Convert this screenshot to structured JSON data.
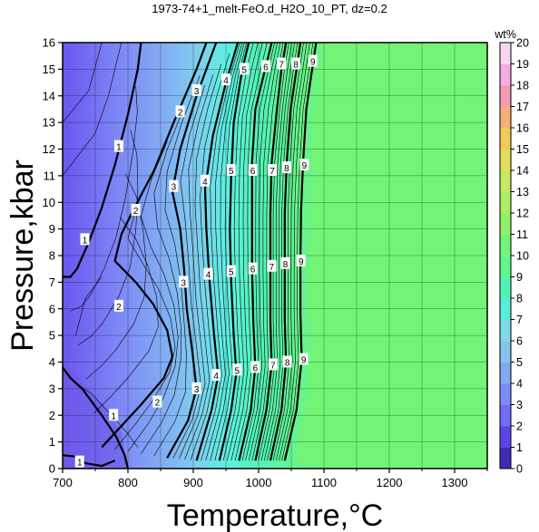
{
  "chart_data": {
    "type": "heatmap",
    "title": "1973-74+1_melt-FeO.d_H2O_10_PT, dz=0.2",
    "xlabel": "Temperature,°C",
    "ylabel": "Pressure,kbar",
    "xlim": [
      700,
      1350
    ],
    "ylim": [
      0,
      16
    ],
    "x_ticks": [
      700,
      800,
      900,
      1000,
      1100,
      1200,
      1300
    ],
    "y_ticks": [
      0,
      1,
      2,
      3,
      4,
      5,
      6,
      7,
      8,
      9,
      10,
      11,
      12,
      13,
      14,
      15,
      16
    ],
    "grid": true,
    "colorbar": {
      "label": "wt%",
      "min": 0,
      "max": 20,
      "ticks": [
        0,
        1,
        2,
        3,
        4,
        5,
        6,
        7,
        8,
        9,
        10,
        11,
        12,
        13,
        14,
        15,
        16,
        17,
        18,
        19,
        20
      ],
      "colors": [
        "#3c2fb4",
        "#5a46e8",
        "#6f6cf6",
        "#7b8df8",
        "#83a9f5",
        "#86c3ef",
        "#7fdbe8",
        "#5cecdc",
        "#52f3b6",
        "#63f48c",
        "#74f476",
        "#8df26a",
        "#a9ee64",
        "#c6e960",
        "#e0df5a",
        "#f2cc57",
        "#f7b073",
        "#f59ab0",
        "#f5aee0",
        "#f8d6f0",
        "#fbeefa"
      ]
    },
    "field_color_outside_melt": "#72f577",
    "contours": [
      {
        "level": 1,
        "points": [
          [
            700,
            7.2
          ],
          [
            712,
            7.2
          ],
          [
            722,
            7.5
          ],
          [
            740,
            8.5
          ],
          [
            760,
            9.8
          ],
          [
            780,
            11.4
          ],
          [
            800,
            13.3
          ],
          [
            815,
            15.0
          ],
          [
            820,
            16
          ]
        ],
        "labels": [
          [
            734,
            8.6
          ],
          [
            786,
            12.1
          ]
        ]
      },
      {
        "level": 2,
        "points": [
          [
            760,
            0.8
          ],
          [
            790,
            1.6
          ],
          [
            820,
            2.4
          ],
          [
            855,
            3.4
          ],
          [
            868,
            4.2
          ],
          [
            860,
            5.2
          ],
          [
            838,
            6.2
          ],
          [
            812,
            7.0
          ],
          [
            780,
            7.8
          ],
          [
            790,
            8.8
          ],
          [
            810,
            9.8
          ],
          [
            840,
            11.2
          ],
          [
            870,
            13.0
          ],
          [
            905,
            15.0
          ],
          [
            920,
            16
          ]
        ],
        "labels": [
          [
            845,
            2.5
          ],
          [
            786,
            6.1
          ],
          [
            812,
            9.7
          ],
          [
            880,
            13.4
          ]
        ]
      },
      {
        "level": 3,
        "points": [
          [
            860,
            0.4
          ],
          [
            892,
            1.8
          ],
          [
            905,
            3.0
          ],
          [
            898,
            4.5
          ],
          [
            890,
            6.0
          ],
          [
            886,
            7.5
          ],
          [
            880,
            9.0
          ],
          [
            868,
            10.4
          ],
          [
            880,
            12.0
          ],
          [
            905,
            14.0
          ],
          [
            935,
            16
          ]
        ],
        "labels": [
          [
            905,
            3.0
          ],
          [
            885,
            7.0
          ],
          [
            870,
            10.6
          ],
          [
            905,
            14.2
          ]
        ]
      },
      {
        "level": 4,
        "points": [
          [
            905,
            0.3
          ],
          [
            928,
            2.2
          ],
          [
            938,
            3.5
          ],
          [
            932,
            5.0
          ],
          [
            925,
            7.0
          ],
          [
            920,
            9.0
          ],
          [
            918,
            10.5
          ],
          [
            930,
            12.5
          ],
          [
            950,
            14.5
          ],
          [
            968,
            16
          ]
        ],
        "labels": [
          [
            935,
            3.5
          ],
          [
            923,
            7.3
          ],
          [
            918,
            10.8
          ],
          [
            950,
            14.6
          ]
        ]
      },
      {
        "level": 5,
        "points": [
          [
            940,
            0.3
          ],
          [
            958,
            2.2
          ],
          [
            966,
            3.6
          ],
          [
            962,
            5.0
          ],
          [
            958,
            7.0
          ],
          [
            956,
            9.0
          ],
          [
            958,
            11.0
          ],
          [
            962,
            13.0
          ],
          [
            975,
            15.0
          ],
          [
            985,
            16
          ]
        ],
        "labels": [
          [
            967,
            3.7
          ],
          [
            958,
            7.4
          ],
          [
            958,
            11.2
          ],
          [
            978,
            15.0
          ]
        ]
      },
      {
        "level": 6,
        "points": [
          [
            970,
            0.3
          ],
          [
            988,
            2.2
          ],
          [
            995,
            3.8
          ],
          [
            992,
            5.5
          ],
          [
            990,
            7.5
          ],
          [
            990,
            9.5
          ],
          [
            990,
            11.5
          ],
          [
            995,
            13.5
          ],
          [
            1010,
            15.0
          ],
          [
            1020,
            16
          ]
        ],
        "labels": [
          [
            995,
            3.8
          ],
          [
            991,
            7.5
          ],
          [
            991,
            11.2
          ],
          [
            1011,
            15.1
          ]
        ]
      },
      {
        "level": 7,
        "points": [
          [
            995,
            0.3
          ],
          [
            1012,
            2.2
          ],
          [
            1020,
            3.9
          ],
          [
            1018,
            5.5
          ],
          [
            1018,
            7.6
          ],
          [
            1018,
            9.6
          ],
          [
            1020,
            11.5
          ],
          [
            1028,
            13.5
          ],
          [
            1035,
            15.0
          ],
          [
            1042,
            16
          ]
        ],
        "labels": [
          [
            1022,
            3.9
          ],
          [
            1020,
            7.6
          ],
          [
            1021,
            11.2
          ],
          [
            1035,
            15.2
          ]
        ]
      },
      {
        "level": 8,
        "points": [
          [
            1018,
            0.3
          ],
          [
            1035,
            2.2
          ],
          [
            1042,
            4.0
          ],
          [
            1040,
            5.6
          ],
          [
            1040,
            7.7
          ],
          [
            1040,
            9.6
          ],
          [
            1043,
            11.5
          ],
          [
            1049,
            13.5
          ],
          [
            1058,
            15.0
          ],
          [
            1064,
            16
          ]
        ],
        "labels": [
          [
            1044,
            4.0
          ],
          [
            1041,
            7.7
          ],
          [
            1043,
            11.3
          ],
          [
            1057,
            15.2
          ]
        ]
      },
      {
        "level": 9,
        "points": [
          [
            1040,
            0.3
          ],
          [
            1058,
            2.2
          ],
          [
            1066,
            4.1
          ],
          [
            1064,
            5.8
          ],
          [
            1064,
            7.9
          ],
          [
            1065,
            9.7
          ],
          [
            1068,
            11.5
          ],
          [
            1073,
            13.5
          ],
          [
            1082,
            15.0
          ],
          [
            1088,
            16
          ]
        ],
        "labels": [
          [
            1069,
            4.1
          ],
          [
            1065,
            7.8
          ],
          [
            1070,
            11.4
          ],
          [
            1083,
            15.3
          ]
        ]
      }
    ],
    "low_pressure_contour_labels": [
      {
        "text": "1",
        "x": 778,
        "y": 2.0
      },
      {
        "text": "1",
        "x": 726,
        "y": 0.25
      }
    ]
  }
}
